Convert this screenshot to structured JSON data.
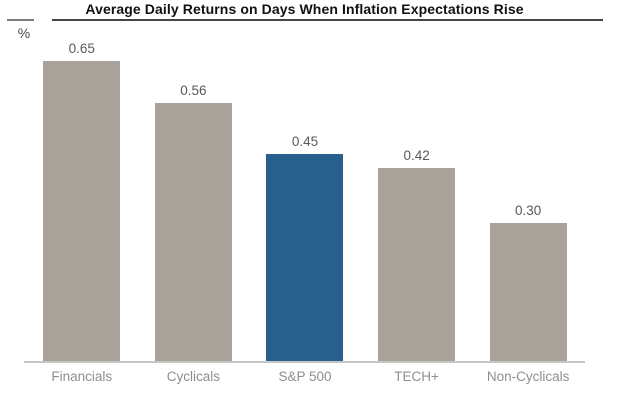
{
  "header": {
    "title": "Average Daily Returns on Days When Inflation Expectations Rise",
    "unit_label": "%"
  },
  "chart_data": {
    "type": "bar",
    "title": "Average Daily Returns on Days When Inflation Expectations Rise",
    "xlabel": "",
    "ylabel": "%",
    "categories": [
      "Financials",
      "Cyclicals",
      "S&P 500",
      "TECH+",
      "Non-Cyclicals"
    ],
    "values": [
      0.65,
      0.56,
      0.45,
      0.42,
      0.3
    ],
    "data_labels": [
      "0.65",
      "0.56",
      "0.45",
      "0.42",
      "0.30"
    ],
    "highlight_category": "S&P 500",
    "ylim": [
      0,
      0.74
    ],
    "grid": false,
    "legend": false,
    "colors": {
      "bar_default": "#a8a29b",
      "bar_highlight": "#295f8c",
      "value_label": "#595959",
      "category_label": "#8f8f8f",
      "axis_line": "#c9c7c4",
      "title_text": "#111111",
      "title_rule": "#454545"
    }
  }
}
